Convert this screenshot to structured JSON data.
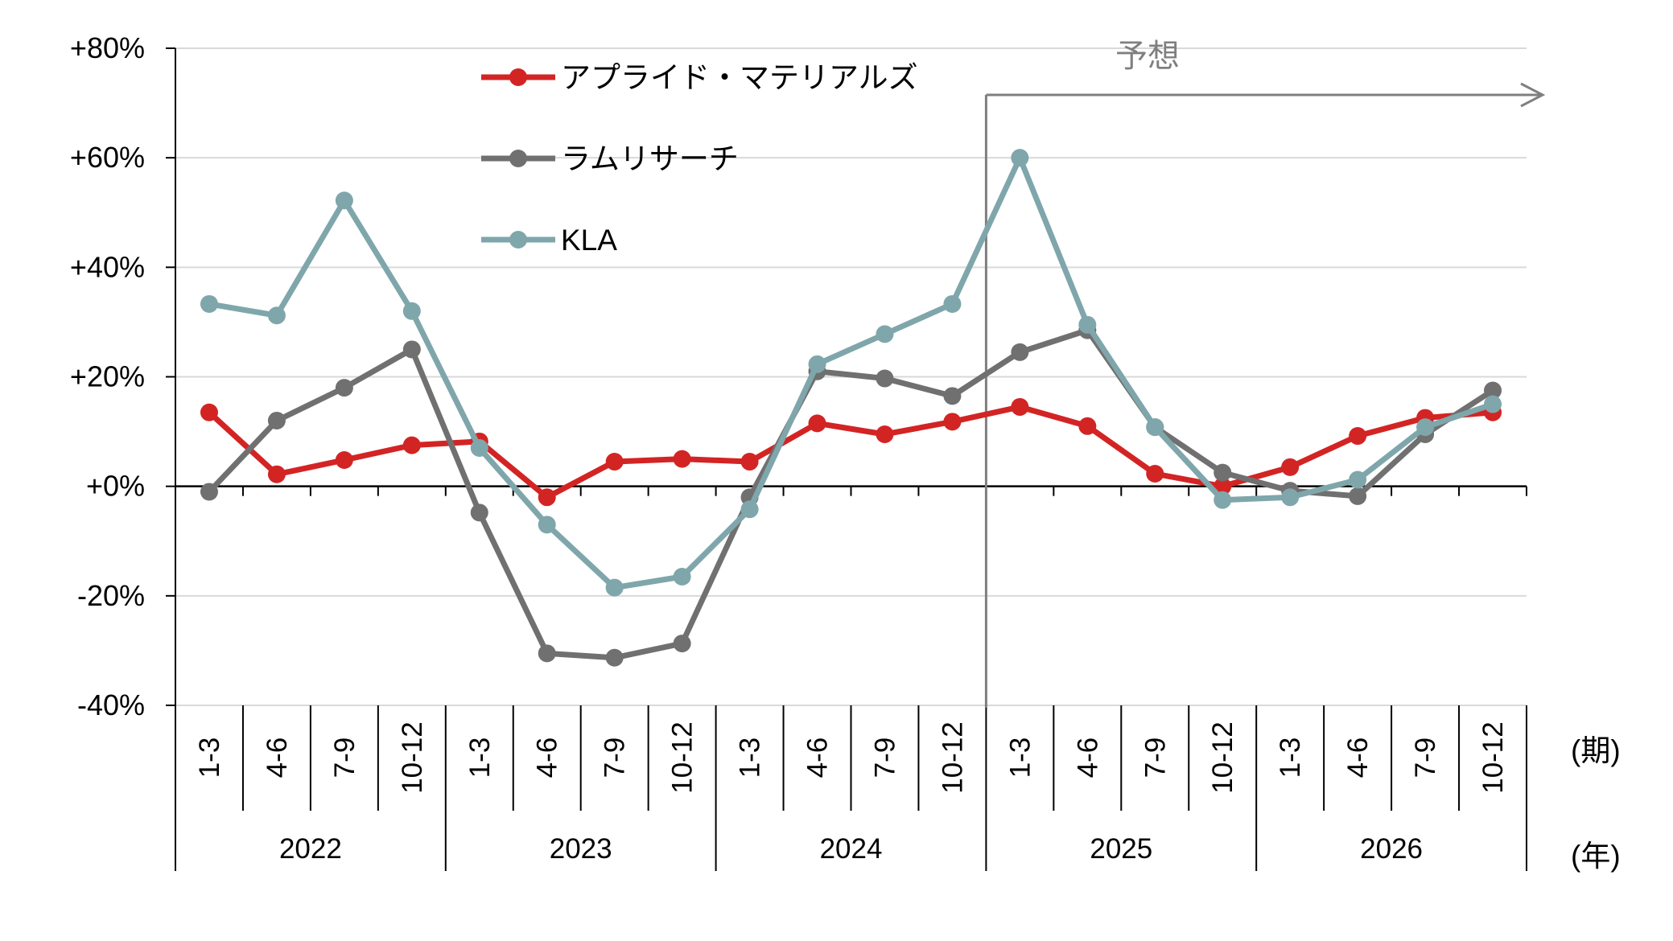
{
  "chart_data": {
    "type": "line",
    "forecast_label": "予想",
    "forecast_start_index": 12,
    "period_unit": "(期)",
    "year_unit": "(年)",
    "y_ticks": [
      {
        "value": 80,
        "label": "+80%",
        "color": "#000000"
      },
      {
        "value": 60,
        "label": "+60%",
        "color": "#000000"
      },
      {
        "value": 40,
        "label": "+40%",
        "color": "#000000"
      },
      {
        "value": 20,
        "label": "+20%",
        "color": "#000000"
      },
      {
        "value": 0,
        "label": "+0%",
        "color": "#000000"
      },
      {
        "value": -20,
        "label": "-20%",
        "color": "#e60012"
      },
      {
        "value": -40,
        "label": "-40%",
        "color": "#e60012"
      }
    ],
    "ylim": [
      -40,
      80
    ],
    "grid": true,
    "legend_position": "top-left",
    "categories": [
      "1-3",
      "4-6",
      "7-9",
      "10-12",
      "1-3",
      "4-6",
      "7-9",
      "10-12",
      "1-3",
      "4-6",
      "7-9",
      "10-12",
      "1-3",
      "4-6",
      "7-9",
      "10-12",
      "1-3",
      "4-6",
      "7-9",
      "10-12"
    ],
    "years": [
      "2022",
      "2023",
      "2024",
      "2025",
      "2026"
    ],
    "series": [
      {
        "name": "アプライド・マテリアルズ",
        "color": "#d32424",
        "values": [
          13.5,
          2.2,
          4.8,
          7.5,
          8.2,
          -2.0,
          4.5,
          5.0,
          4.5,
          11.5,
          9.5,
          11.8,
          14.5,
          11.0,
          2.3,
          0.0,
          3.5,
          9.2,
          12.5,
          13.5
        ]
      },
      {
        "name": "ラムリサーチ",
        "color": "#707070",
        "values": [
          -1.0,
          12.0,
          18.0,
          25.0,
          -4.8,
          -30.5,
          -31.3,
          -28.7,
          -2.0,
          21.0,
          19.7,
          16.5,
          24.5,
          28.5,
          10.8,
          2.5,
          -0.8,
          -1.8,
          9.5,
          17.5
        ]
      },
      {
        "name": "KLA",
        "color": "#7fa6ab",
        "values": [
          33.3,
          31.2,
          52.2,
          32.0,
          7.0,
          -7.0,
          -18.5,
          -16.5,
          -4.2,
          22.3,
          27.8,
          33.3,
          60.0,
          29.5,
          10.8,
          -2.5,
          -2.0,
          1.2,
          10.8,
          15.0
        ]
      }
    ]
  }
}
